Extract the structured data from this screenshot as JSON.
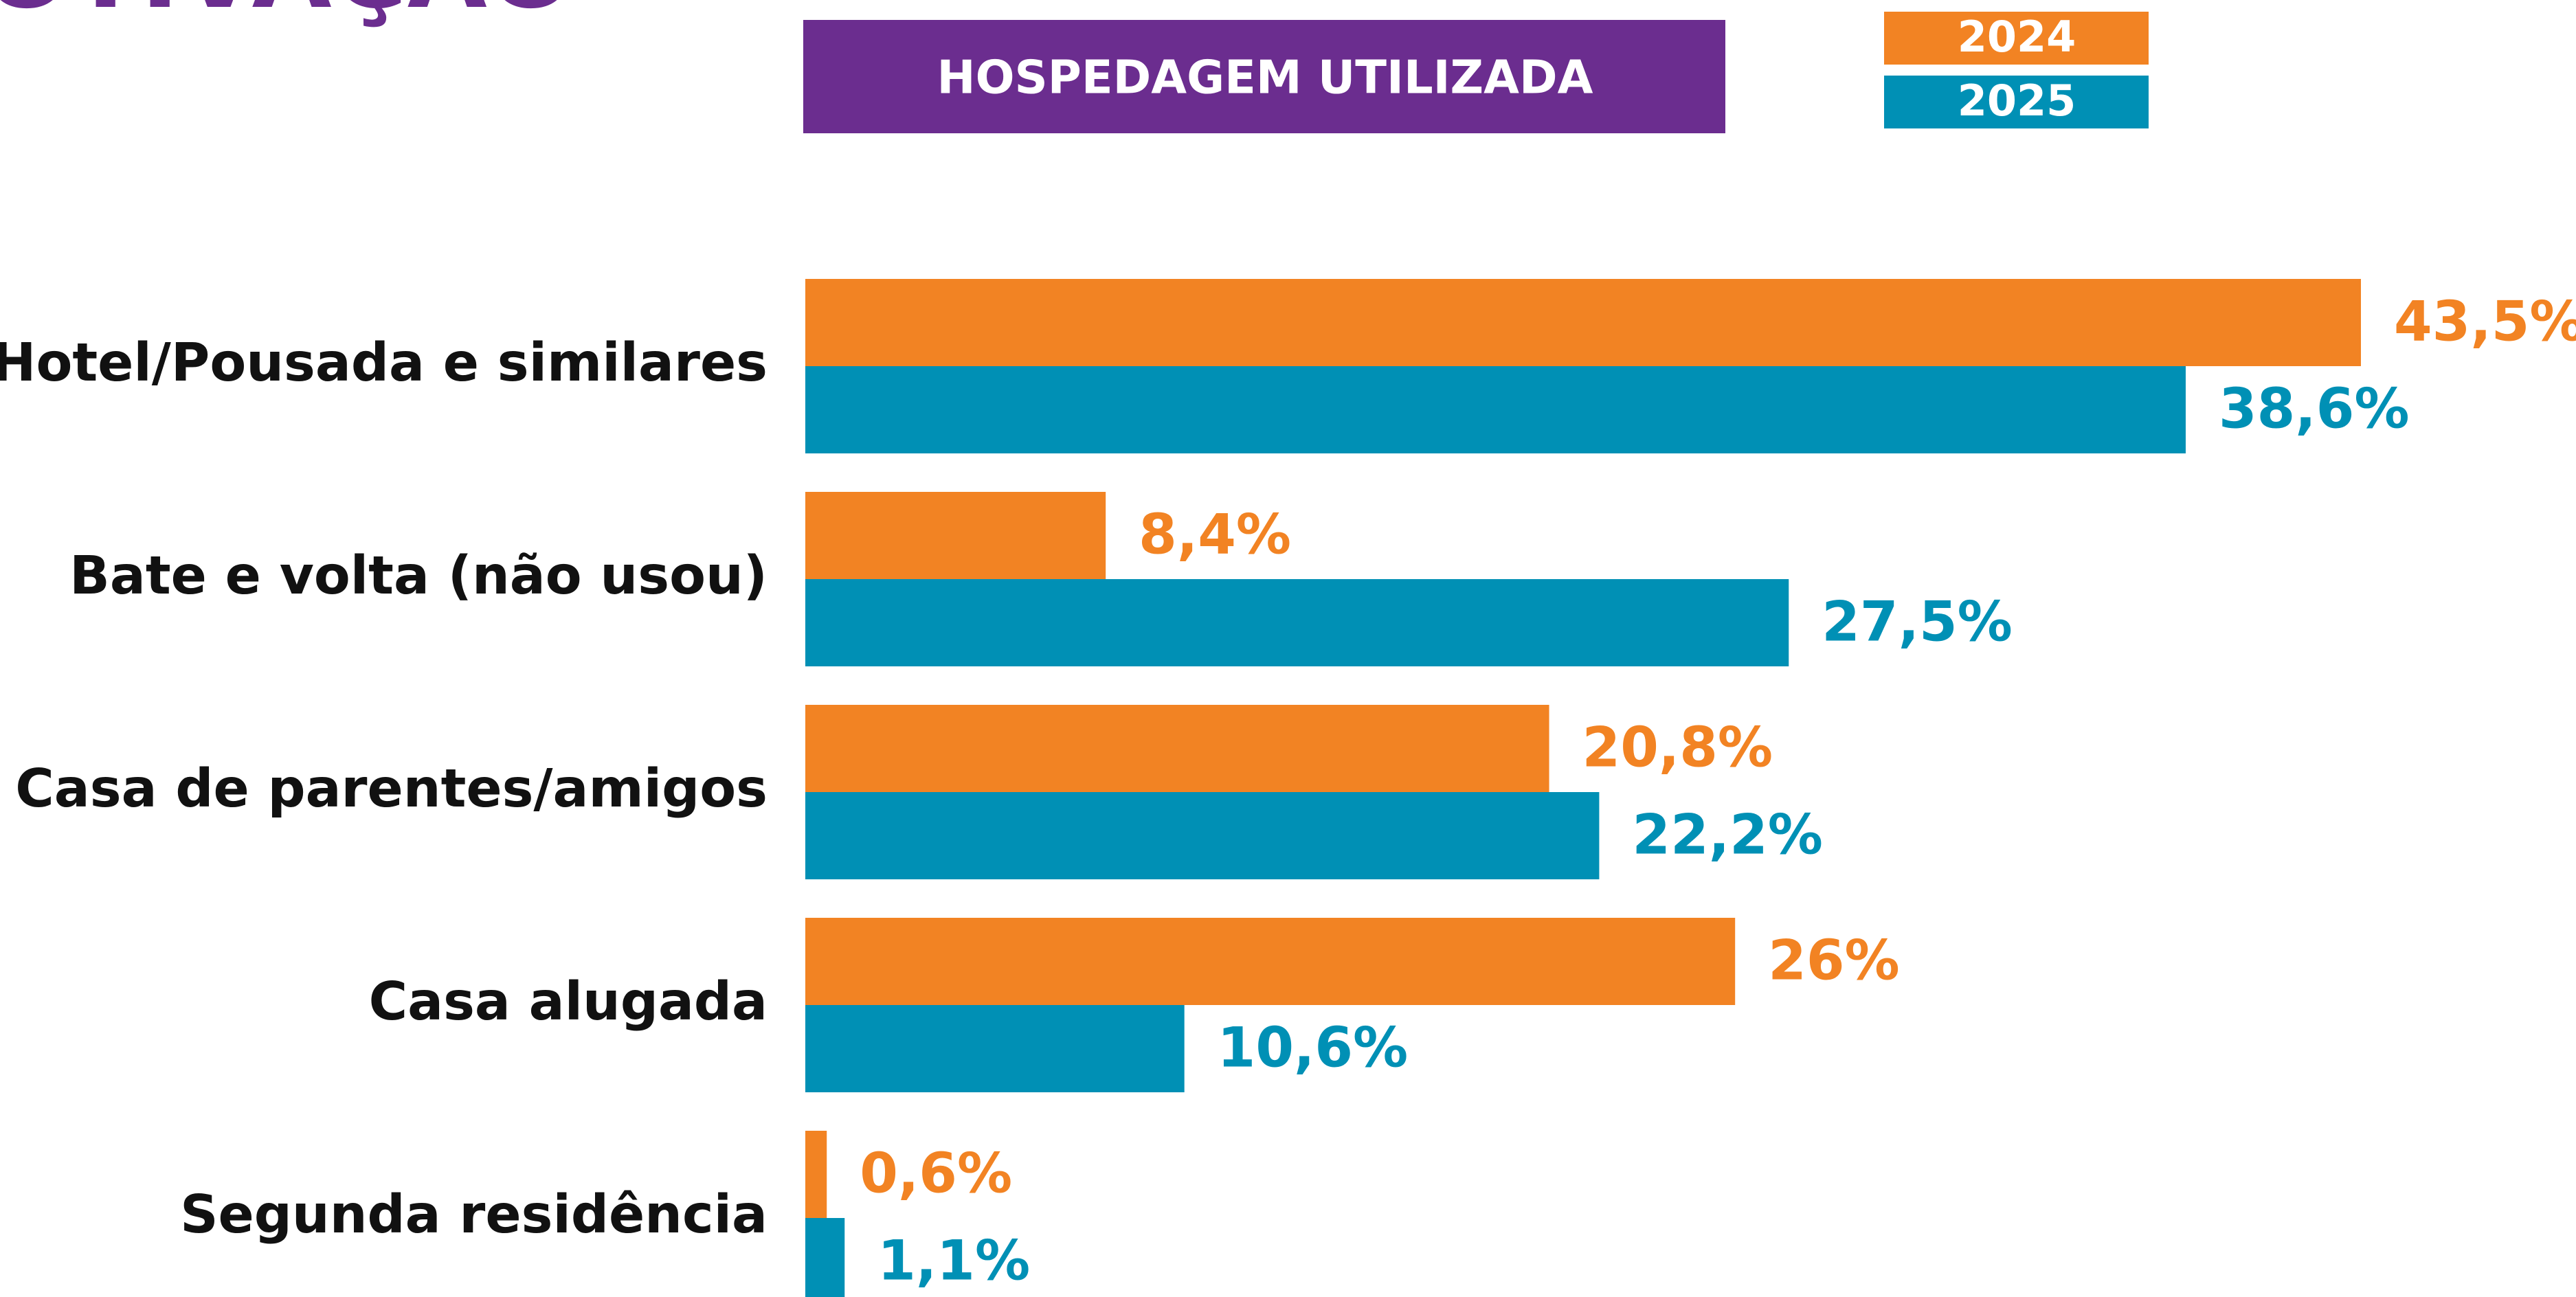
{
  "chart_data": {
    "type": "barh",
    "title": "OTIVAÇÃO",
    "subtitle": "HOSPEDAGEM UTILIZADA",
    "categories": [
      "Hotel/Pousada e similares",
      "Bate e volta (não usou)",
      "Casa de parentes/amigos",
      "Casa alugada",
      "Segunda residência"
    ],
    "series": [
      {
        "name": "2024",
        "color": "#f28323",
        "values": [
          43.5,
          8.4,
          20.8,
          26,
          0.6
        ],
        "value_labels": [
          "43,5%",
          "8,4%",
          "20,8%",
          "26%",
          "0,6%"
        ]
      },
      {
        "name": "2025",
        "color": "#0090b5",
        "values": [
          38.6,
          27.5,
          22.2,
          10.6,
          1.1
        ],
        "value_labels": [
          "38,6%",
          "27,5%",
          "22,2%",
          "10,6%",
          "1,1%"
        ]
      }
    ]
  }
}
